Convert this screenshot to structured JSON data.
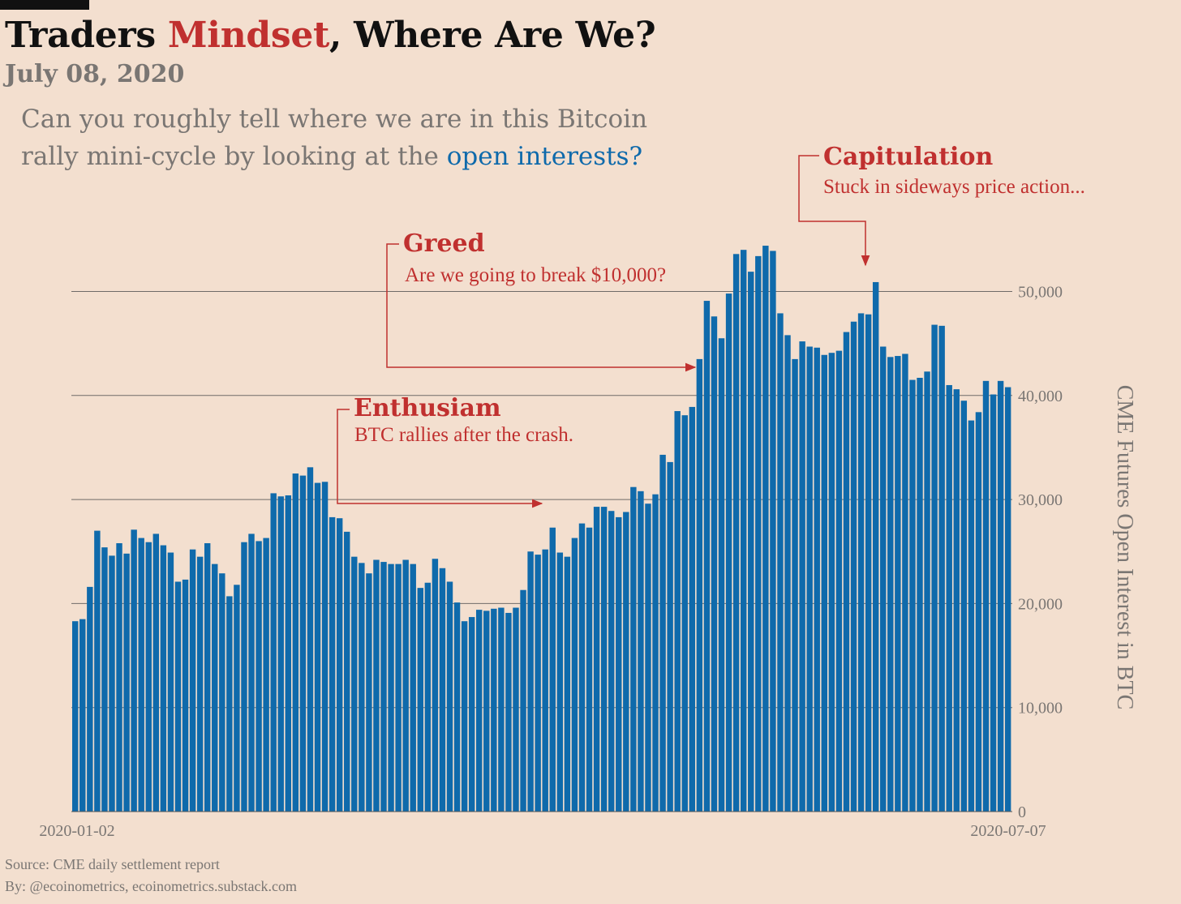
{
  "header": {
    "title_before": "Traders ",
    "title_accent": "Mindset",
    "title_after": ", Where Are We?",
    "date": "July 08, 2020",
    "subtitle_main": "Can you roughly tell where we are in this Bitcoin rally mini-cycle by looking at the ",
    "subtitle_accent": "open interests?"
  },
  "footer": {
    "source": "Source: CME daily settlement report",
    "byline": "By: @ecoinometrics, ecoinometrics.substack.com"
  },
  "colors": {
    "background": "#f3dfcf",
    "bar": "#0f6aab",
    "accent": "#c0302f",
    "grey_text": "#7a7673"
  },
  "annotations": [
    {
      "title": "Capitulation",
      "text": "Stuck in sideways price action..."
    },
    {
      "title": "Greed",
      "text": "Are we going to break $10,000?"
    },
    {
      "title": "Enthusiam",
      "text": "BTC rallies after the crash."
    }
  ],
  "chart_data": {
    "type": "bar",
    "ylabel": "CME Futures Open Interest in BTC",
    "ylim": [
      0,
      55000
    ],
    "yticks": [
      0,
      10000,
      20000,
      30000,
      40000,
      50000
    ],
    "ytick_labels": [
      "0",
      "10,000",
      "20,000",
      "30,000",
      "40,000",
      "50,000"
    ],
    "x_start_label": "2020-01-02",
    "x_end_label": "2020-07-07",
    "grid": "horizontal",
    "values": [
      18300,
      18500,
      21600,
      27000,
      25400,
      24600,
      25800,
      24800,
      27100,
      26300,
      25900,
      26700,
      25600,
      24900,
      22100,
      22300,
      25200,
      24500,
      25800,
      23800,
      22900,
      20700,
      21800,
      25900,
      26700,
      26000,
      26300,
      30600,
      30300,
      30400,
      32500,
      32300,
      33100,
      31600,
      31700,
      28300,
      28200,
      26900,
      24500,
      23900,
      22900,
      24200,
      24000,
      23800,
      23800,
      24200,
      23800,
      21500,
      22000,
      24300,
      23400,
      22100,
      20100,
      18300,
      18700,
      19400,
      19300,
      19500,
      19600,
      19100,
      19600,
      21300,
      25000,
      24700,
      25200,
      27300,
      24900,
      24500,
      26300,
      27700,
      27300,
      29300,
      29300,
      28900,
      28300,
      28800,
      31200,
      30800,
      29600,
      30500,
      34300,
      33600,
      38500,
      38100,
      38900,
      43500,
      49100,
      47600,
      45500,
      49800,
      53600,
      54000,
      51900,
      53400,
      54400,
      53900,
      47900,
      45800,
      43500,
      45200,
      44700,
      44600,
      43900,
      44100,
      44300,
      46100,
      47100,
      47900,
      47800,
      50900,
      44700,
      43700,
      43800,
      44000,
      41500,
      41700,
      42300,
      46800,
      46700,
      41000,
      40600,
      39500,
      37600,
      38400,
      41400,
      40100,
      41400,
      40800
    ]
  }
}
